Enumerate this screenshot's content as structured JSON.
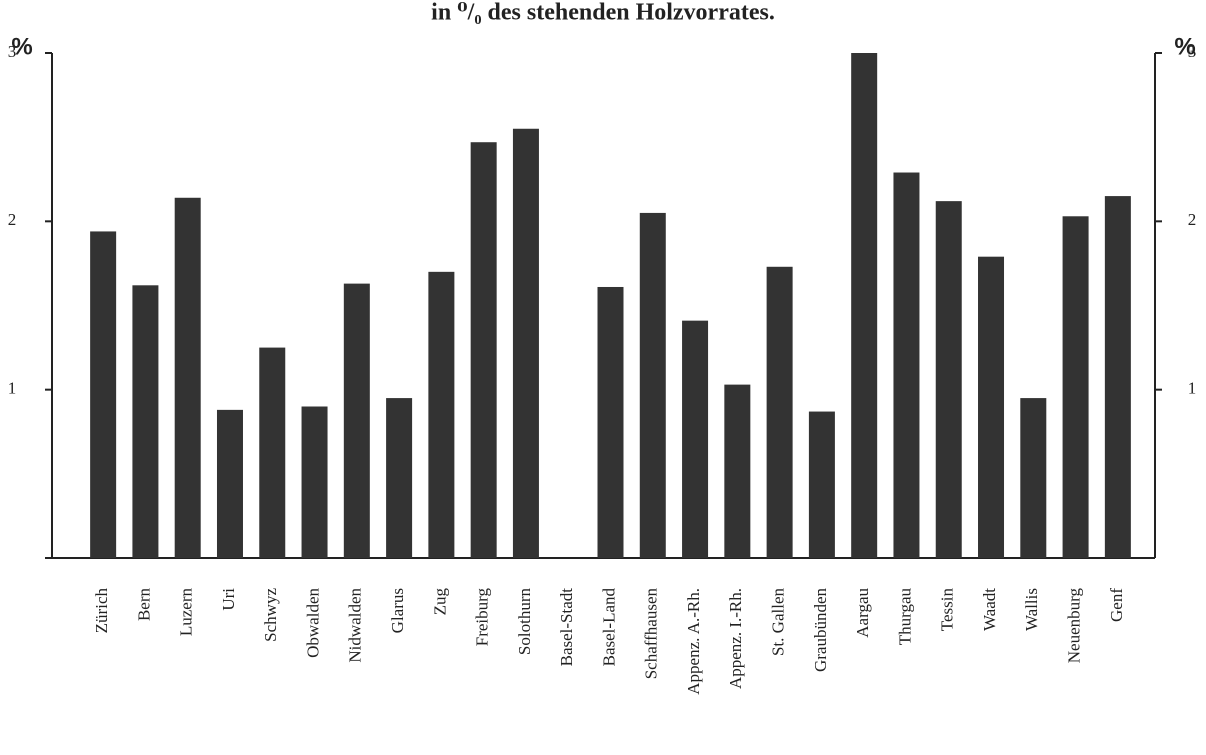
{
  "chart_data": {
    "type": "bar",
    "title": "in ⁰/₀ des stehenden Holzvorrates.",
    "y_label": "%",
    "y2_label": "%",
    "categories": [
      "Zürich",
      "Bern",
      "Luzern",
      "Uri",
      "Schwyz",
      "Obwalden",
      "Nidwalden",
      "Glarus",
      "Zug",
      "Freiburg",
      "Solothurn",
      "Basel-Stadt",
      "Basel-Land",
      "Schaffhausen",
      "Appenz. A.-Rh.",
      "Appenz. I.-Rh.",
      "St. Gallen",
      "Graubünden",
      "Aargau",
      "Thurgau",
      "Tessin",
      "Waadt",
      "Wallis",
      "Neuenburg",
      "Genf"
    ],
    "values": [
      1.94,
      1.62,
      2.14,
      0.88,
      1.25,
      0.9,
      1.63,
      0.95,
      1.7,
      2.47,
      2.55,
      null,
      1.61,
      2.05,
      1.41,
      1.03,
      1.73,
      0.87,
      3.0,
      2.29,
      2.12,
      1.79,
      0.95,
      2.03,
      2.15
    ],
    "color": "#333333",
    "ylim": [
      0,
      3
    ],
    "yticks": [
      1,
      2,
      3
    ],
    "y2lim": [
      0,
      3
    ],
    "y2ticks": [
      1,
      2,
      3
    ]
  }
}
